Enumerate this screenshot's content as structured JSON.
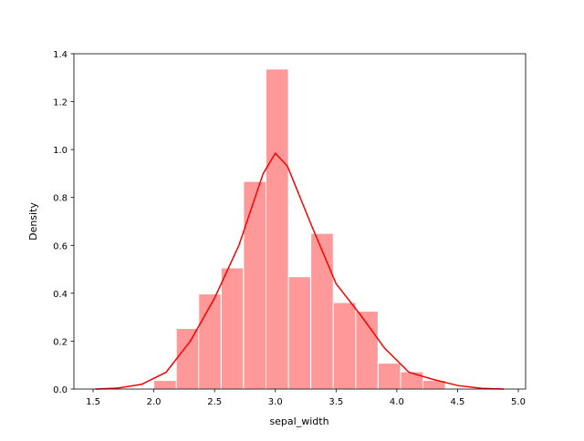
{
  "chart_data": {
    "type": "histogram",
    "bins": [
      2.0,
      2.185,
      2.369,
      2.554,
      2.738,
      2.923,
      3.108,
      3.292,
      3.477,
      3.662,
      3.846,
      4.031,
      4.215,
      4.4
    ],
    "values": [
      0.036,
      0.253,
      0.397,
      0.506,
      0.867,
      1.336,
      0.469,
      0.65,
      0.361,
      0.325,
      0.108,
      0.072,
      0.036
    ],
    "color": "#ff9999",
    "kde": {
      "color": "#ff0000",
      "x": [
        1.52,
        1.7,
        1.9,
        2.1,
        2.3,
        2.5,
        2.7,
        2.9,
        3.0,
        3.1,
        3.3,
        3.5,
        3.7,
        3.9,
        4.1,
        4.3,
        4.5,
        4.7,
        4.88
      ],
      "values": [
        0.0,
        0.004,
        0.02,
        0.07,
        0.2,
        0.38,
        0.6,
        0.9,
        0.985,
        0.93,
        0.68,
        0.44,
        0.31,
        0.17,
        0.07,
        0.04,
        0.015,
        0.003,
        0.0
      ]
    },
    "xlabel": "sepal_width",
    "ylabel": "Density",
    "xlim": [
      1.342,
      5.06
    ],
    "ylim": [
      0,
      1.4
    ],
    "xticks": [
      1.5,
      {
        "value": 2,
        "label": "2.0"
      },
      2.5,
      {
        "value": 3,
        "label": "3.0"
      },
      3.5,
      {
        "value": 4,
        "label": "4.0"
      },
      4.5,
      {
        "value": 5,
        "label": "5.0"
      }
    ],
    "yticks": [
      {
        "value": 0,
        "label": "0.0"
      },
      0.2,
      0.4,
      0.6,
      0.8,
      {
        "value": 1,
        "label": "1.0"
      },
      1.2,
      1.4
    ]
  }
}
